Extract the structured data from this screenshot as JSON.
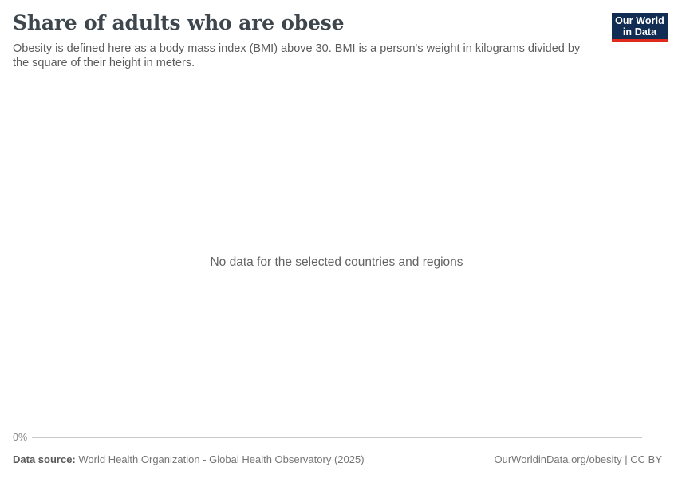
{
  "header": {
    "title": "Share of adults who are obese",
    "subtitle": "Obesity is defined here as a body mass index (BMI) above 30. BMI is a person's weight in kilograms divided by the square of their height in meters.",
    "logo": {
      "line1": "Our World",
      "line2": "in Data"
    }
  },
  "chart_data": {
    "type": "line",
    "title": "Share of adults who are obese",
    "series": [],
    "categories": [],
    "empty_message": "No data for the selected countries and regions",
    "y_axis_ticks": [
      "0%"
    ],
    "ylabel": "",
    "xlabel": "",
    "grid": false,
    "legend": "none"
  },
  "footer": {
    "data_source_label": "Data source:",
    "data_source_value": "World Health Organization - Global Health Observatory (2025)",
    "attribution": "OurWorldinData.org/obesity | CC BY"
  },
  "colors": {
    "logo_background": "#112d53",
    "logo_accent": "#e02a1e",
    "title_text": "#3d464d",
    "subtitle_text": "#5c5c5c",
    "no_data_text": "#636363",
    "axis_tick_text": "#878787",
    "axis_line": "#c8c8c8",
    "footer_text": "#757575"
  }
}
